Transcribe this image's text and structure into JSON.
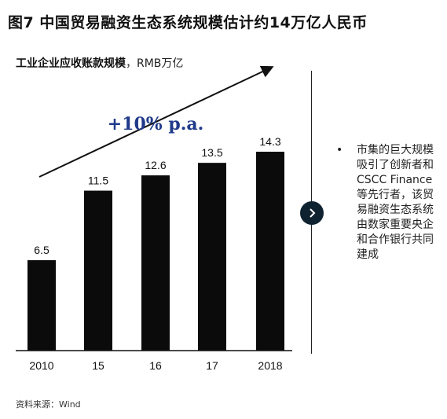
{
  "title": "图7 中国贸易融资生态系统规模估计约14万亿人民币",
  "subtitle": {
    "bold": "工业企业应收账款规模",
    "normal": "，RMB万亿"
  },
  "chart_data": {
    "type": "bar",
    "categories": [
      "2010",
      "15",
      "16",
      "17",
      "2018"
    ],
    "values": [
      6.5,
      11.5,
      12.6,
      13.5,
      14.3
    ],
    "value_labels": [
      "6.5",
      "11.5",
      "12.6",
      "13.5",
      "14.3"
    ],
    "ylim": [
      0,
      14.3
    ],
    "bar_color": "#0b0b0b",
    "annotation": "+10% p.a.",
    "annotation_color": "#1f3a8a",
    "grid": false
  },
  "side_note": "市集的巨大规模吸引了创新者和CSCC Finance等先行者，该贸易融资生态系统由数家重要央企和合作银行共同建成",
  "source": "资料来源：Wind",
  "icons": {
    "next": "chevron-right-icon"
  }
}
